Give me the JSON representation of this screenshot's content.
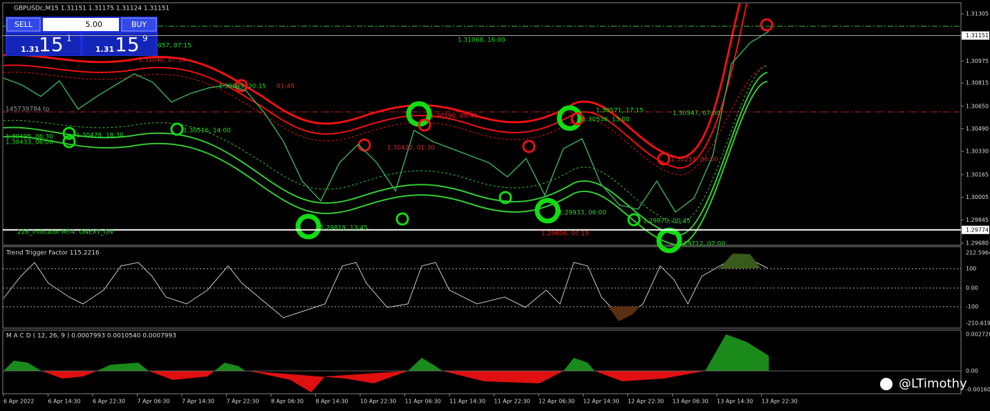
{
  "header": "GBPUSDc,M15  1.31151 1.31175 1.31124 1.31151",
  "trade_panel": {
    "sell": "SELL",
    "buy": "BUY",
    "lots": "5.00",
    "bid_prefix": "1.31",
    "bid_big": "15",
    "bid_sup": "1",
    "ask_prefix": "1.31",
    "ask_big": "15",
    "ask_sup": "9"
  },
  "price_axis": {
    "range": [
      1.2968,
      1.31305
    ],
    "ticks": [
      1.31305,
      {
        "value": 1.3097,
        "label": "1.30975"
      },
      1.30815,
      {
        "value": 1.3065,
        "label": "1.30650"
      },
      {
        "value": 1.3049,
        "label": "1.30490"
      },
      {
        "value": 1.3033,
        "label": "1.30330"
      },
      1.30165,
      1.30005,
      1.29845,
      {
        "value": 1.2968,
        "label": "1.29680"
      }
    ],
    "current": 1.31151,
    "line_price": 1.29774
  },
  "price_line": [
    1.3085,
    1.308,
    1.3072,
    1.3083,
    1.3063,
    1.3072,
    1.308,
    1.3088,
    1.3082,
    1.3068,
    1.3074,
    1.3078,
    1.308,
    1.3076,
    1.306,
    1.304,
    1.3012,
    1.2998,
    1.3025,
    1.3038,
    1.3025,
    1.3005,
    1.3048,
    1.304,
    1.3035,
    1.303,
    1.3025,
    1.3015,
    1.3028,
    1.3002,
    1.3035,
    1.3042,
    1.301,
    1.2995,
    1.2992,
    1.3012,
    1.299,
    1.3,
    1.303,
    1.3095,
    1.311,
    1.3118
  ],
  "annotations": [
    {
      "text": "057, 07:15",
      "color": "#22dd22"
    },
    {
      "text": "1.31040, 07:30",
      "color": "#ee2222"
    },
    {
      "text": "1.31068, 16:00",
      "color": "#22dd22"
    },
    {
      "text": "1.30849, 20:15",
      "color": "#22dd22"
    },
    {
      "text": "01:45",
      "color": "#ee2222"
    },
    {
      "text": "145739784.tp",
      "color": "#999999"
    },
    {
      "text": "1.30516, 14:00",
      "color": "#22dd22"
    },
    {
      "text": "1.30478, 18:30",
      "color": "#22dd22"
    },
    {
      "text": "1.30495, 06:30",
      "color": "#22dd22"
    },
    {
      "text": "1.30433, 06:00",
      "color": "#22dd22"
    },
    {
      "text": "1.30590, 09:45",
      "color": "#ee2222"
    },
    {
      "text": "1.30422, 01:30",
      "color": "#ee2222"
    },
    {
      "text": "1.30571, 17:15",
      "color": "#22dd22"
    },
    {
      "text": "1.30536, 13:00",
      "color": "#22dd22"
    },
    {
      "text": "1.30547, 07:00",
      "color": "#22dd22"
    },
    {
      "text": "1.30251, 06:00",
      "color": "#ee2222"
    },
    {
      "text": "1.29819, 13:45",
      "color": "#22dd22"
    },
    {
      "text": "1.29933, 06:00",
      "color": "#22dd22"
    },
    {
      "text": "1.29808, 07:15",
      "color": "#ee2222"
    },
    {
      "text": "1.29870, 00:45",
      "color": "#22dd22"
    },
    {
      "text": "1.29712, 07:00",
      "color": "#22dd22"
    },
    {
      "text": "226_Indicator MT4: ONEXT_ON",
      "color": "#22dd22"
    }
  ],
  "ttf": {
    "title": "Trend Trigger Factor 115.2216",
    "ticks": [
      "212.5964",
      "100",
      "0.00",
      "-100",
      "-210.6191"
    ]
  },
  "macd": {
    "title": "M A C D ( 12, 26, 9 ) 0.0007993 0.0010540 0.0007993",
    "ticks": [
      "0.002720",
      "0.00",
      "-0.001601"
    ]
  },
  "time_axis": [
    "6 Apr 2022",
    "6 Apr 14:30",
    "6 Apr 22:30",
    "7 Apr 06:30",
    "7 Apr 14:30",
    "7 Apr 22:30",
    "8 Apr 06:30",
    "8 Apr 14:30",
    "10 Apr 22:30",
    "11 Apr 06:30",
    "11 Apr 14:30",
    "11 Apr 22:30",
    "12 Apr 06:30",
    "12 Apr 14:30",
    "12 Apr 22:30",
    "13 Apr 06:30",
    "13 Apr 14:30",
    "13 Apr 22:30"
  ],
  "watermark": "@LTimothy"
}
